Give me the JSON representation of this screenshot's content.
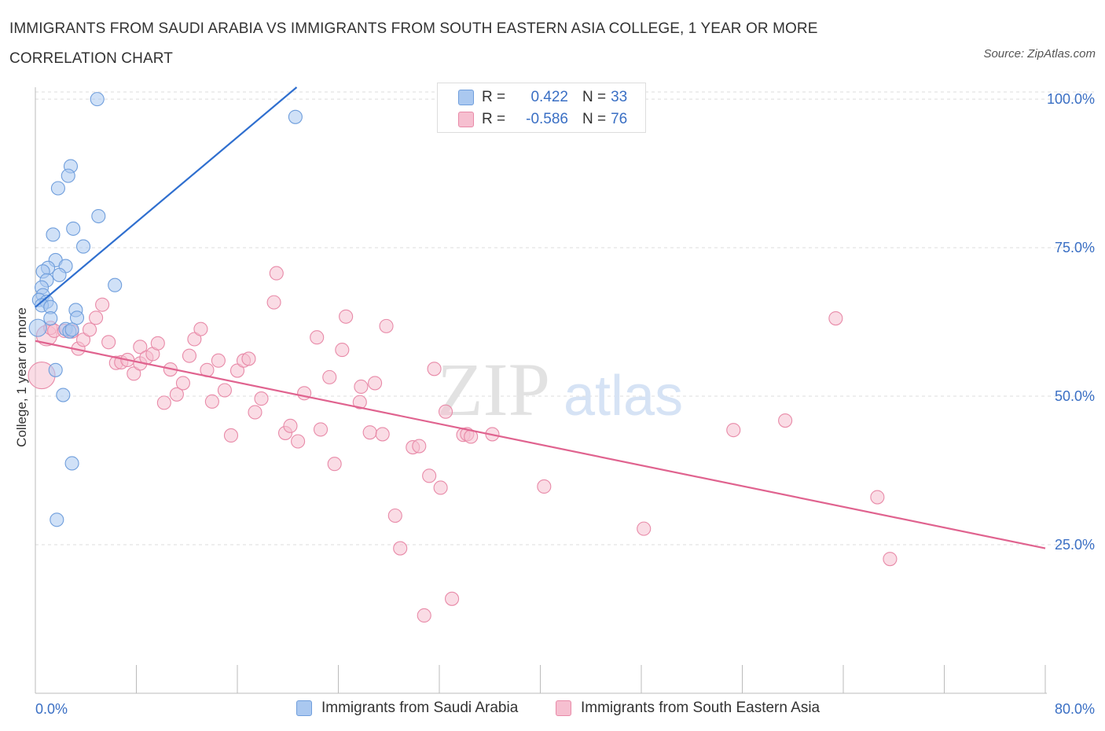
{
  "title": "IMMIGRANTS FROM SAUDI ARABIA VS IMMIGRANTS FROM SOUTH EASTERN ASIA COLLEGE, 1 YEAR OR MORE CORRELATION CHART",
  "source": "Source: ZipAtlas.com",
  "watermark": {
    "zip": "ZIP",
    "atlas": "atlas"
  },
  "colors": {
    "blue_fill": "#aac8f0",
    "blue_stroke": "#6f9edc",
    "blue_line": "#2f6fcf",
    "pink_fill": "#f6bfd0",
    "pink_stroke": "#e88aa8",
    "pink_line": "#e0638f",
    "axis_text": "#3a6fc4",
    "grid": "#dddddd"
  },
  "legend": {
    "rows": [
      {
        "r_label": "R =",
        "r_value": "0.422",
        "n_label": "N =",
        "n_value": "33"
      },
      {
        "r_label": "R =",
        "r_value": "-0.586",
        "n_label": "N =",
        "n_value": "76"
      }
    ]
  },
  "bottom_legend": [
    "Immigrants from Saudi Arabia",
    "Immigrants from South Eastern Asia"
  ],
  "chart_data": {
    "type": "scatter",
    "title": "IMMIGRANTS FROM SAUDI ARABIA VS IMMIGRANTS FROM SOUTH EASTERN ASIA COLLEGE, 1 YEAR OR MORE CORRELATION CHART",
    "xlabel": "",
    "ylabel": "College, 1 year or more",
    "xlim": [
      0,
      80
    ],
    "ylim": [
      0,
      102
    ],
    "x_tick_labels": [
      "0.0%",
      "80.0%"
    ],
    "y_ticks": [
      25,
      50,
      75,
      100
    ],
    "y_tick_labels": [
      "25.0%",
      "50.0%",
      "75.0%",
      "100.0%"
    ],
    "grid": true,
    "legend_position": "top-center",
    "series": [
      {
        "name": "Immigrants from Saudi Arabia",
        "color": "#aac8f0",
        "trend": {
          "x": [
            0,
            20.7
          ],
          "y": [
            65,
            102
          ]
        },
        "points": [
          [
            4.9,
            100.0
          ],
          [
            20.6,
            97.0
          ],
          [
            2.8,
            88.7
          ],
          [
            2.6,
            87.1
          ],
          [
            1.8,
            85.0
          ],
          [
            5.0,
            80.3
          ],
          [
            3.0,
            78.2
          ],
          [
            1.4,
            77.2
          ],
          [
            3.8,
            75.2
          ],
          [
            1.6,
            72.9
          ],
          [
            1.0,
            71.6
          ],
          [
            2.4,
            71.9
          ],
          [
            0.6,
            71.0
          ],
          [
            1.9,
            70.4
          ],
          [
            0.9,
            69.5
          ],
          [
            0.5,
            68.3
          ],
          [
            6.3,
            68.7
          ],
          [
            0.6,
            67.0
          ],
          [
            0.3,
            66.2
          ],
          [
            0.9,
            65.9
          ],
          [
            0.5,
            65.3
          ],
          [
            1.2,
            65.0
          ],
          [
            3.2,
            64.5
          ],
          [
            3.3,
            63.2
          ],
          [
            1.2,
            63.1
          ],
          [
            2.4,
            61.3
          ],
          [
            2.7,
            60.9
          ],
          [
            2.9,
            61.2
          ],
          [
            0.2,
            61.5
          ],
          [
            1.6,
            54.4
          ],
          [
            2.2,
            50.2
          ],
          [
            2.9,
            38.7
          ],
          [
            1.7,
            29.2
          ]
        ]
      },
      {
        "name": "Immigrants from South Eastern Asia",
        "color": "#f6bfd0",
        "trend": {
          "x": [
            0,
            80
          ],
          "y": [
            59.3,
            24.4
          ]
        },
        "points": [
          [
            0.5,
            53.5
          ],
          [
            0.9,
            60.2
          ],
          [
            1.2,
            61.5
          ],
          [
            1.5,
            61.0
          ],
          [
            2.3,
            61.0
          ],
          [
            2.9,
            60.9
          ],
          [
            3.4,
            58.0
          ],
          [
            3.8,
            59.5
          ],
          [
            4.3,
            61.2
          ],
          [
            4.8,
            63.2
          ],
          [
            5.3,
            65.4
          ],
          [
            5.8,
            59.1
          ],
          [
            6.4,
            55.6
          ],
          [
            6.8,
            55.7
          ],
          [
            7.3,
            56.1
          ],
          [
            7.8,
            53.8
          ],
          [
            8.3,
            55.5
          ],
          [
            8.3,
            58.3
          ],
          [
            8.8,
            56.5
          ],
          [
            9.3,
            57.1
          ],
          [
            9.7,
            58.9
          ],
          [
            10.2,
            48.9
          ],
          [
            10.7,
            54.5
          ],
          [
            11.2,
            50.3
          ],
          [
            11.7,
            52.2
          ],
          [
            12.2,
            56.8
          ],
          [
            12.6,
            59.6
          ],
          [
            13.1,
            61.3
          ],
          [
            13.6,
            54.4
          ],
          [
            14.0,
            49.1
          ],
          [
            14.5,
            56.0
          ],
          [
            15.0,
            51.0
          ],
          [
            15.5,
            43.4
          ],
          [
            16.0,
            54.3
          ],
          [
            16.5,
            56.0
          ],
          [
            16.9,
            56.3
          ],
          [
            17.4,
            47.3
          ],
          [
            17.9,
            49.6
          ],
          [
            18.9,
            65.8
          ],
          [
            19.1,
            70.7
          ],
          [
            19.8,
            43.8
          ],
          [
            20.2,
            45.0
          ],
          [
            20.8,
            42.4
          ],
          [
            21.3,
            50.5
          ],
          [
            22.3,
            59.9
          ],
          [
            22.6,
            44.4
          ],
          [
            23.3,
            53.2
          ],
          [
            23.7,
            38.6
          ],
          [
            24.3,
            57.8
          ],
          [
            24.6,
            63.4
          ],
          [
            25.7,
            49.0
          ],
          [
            25.8,
            51.6
          ],
          [
            26.5,
            43.9
          ],
          [
            26.9,
            52.2
          ],
          [
            27.5,
            43.6
          ],
          [
            27.8,
            61.8
          ],
          [
            28.5,
            29.9
          ],
          [
            28.9,
            24.4
          ],
          [
            29.9,
            41.4
          ],
          [
            30.4,
            41.6
          ],
          [
            30.8,
            13.1
          ],
          [
            31.2,
            36.6
          ],
          [
            31.6,
            54.6
          ],
          [
            32.1,
            34.6
          ],
          [
            32.5,
            47.4
          ],
          [
            33.0,
            15.9
          ],
          [
            33.9,
            43.5
          ],
          [
            34.2,
            43.6
          ],
          [
            34.5,
            43.2
          ],
          [
            36.2,
            43.6
          ],
          [
            40.3,
            34.8
          ],
          [
            48.2,
            27.7
          ],
          [
            55.3,
            44.3
          ],
          [
            59.4,
            45.9
          ],
          [
            63.4,
            63.1
          ],
          [
            66.7,
            33.0
          ],
          [
            67.7,
            22.6
          ]
        ]
      }
    ]
  }
}
